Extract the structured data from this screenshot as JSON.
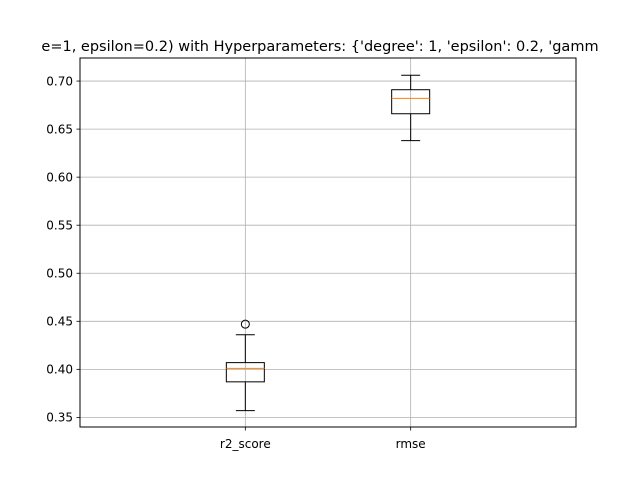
{
  "chart_data": {
    "type": "box",
    "title": "e=1, epsilon=0.2) with Hyperparameters: {'degree': 1, 'epsilon': 0.2, 'gamm",
    "xlabel": "",
    "ylabel": "",
    "categories": [
      "r2_score",
      "rmse"
    ],
    "ylim": [
      0.34,
      0.724
    ],
    "yticks": [
      0.35,
      0.4,
      0.45,
      0.5,
      0.55,
      0.6,
      0.65,
      0.7
    ],
    "ytick_labels": [
      "0.35",
      "0.40",
      "0.45",
      "0.50",
      "0.55",
      "0.60",
      "0.65",
      "0.70"
    ],
    "grid": true,
    "boxes": [
      {
        "category": "r2_score",
        "whisker_low": 0.357,
        "q1": 0.387,
        "median": 0.401,
        "q3": 0.407,
        "whisker_high": 0.436,
        "outliers": [
          0.447
        ]
      },
      {
        "category": "rmse",
        "whisker_low": 0.638,
        "q1": 0.666,
        "median": 0.682,
        "q3": 0.691,
        "whisker_high": 0.706,
        "outliers": []
      }
    ],
    "colors": {
      "box": "#000000",
      "median": "#ff7f0e",
      "grid": "#b0b0b0"
    }
  }
}
